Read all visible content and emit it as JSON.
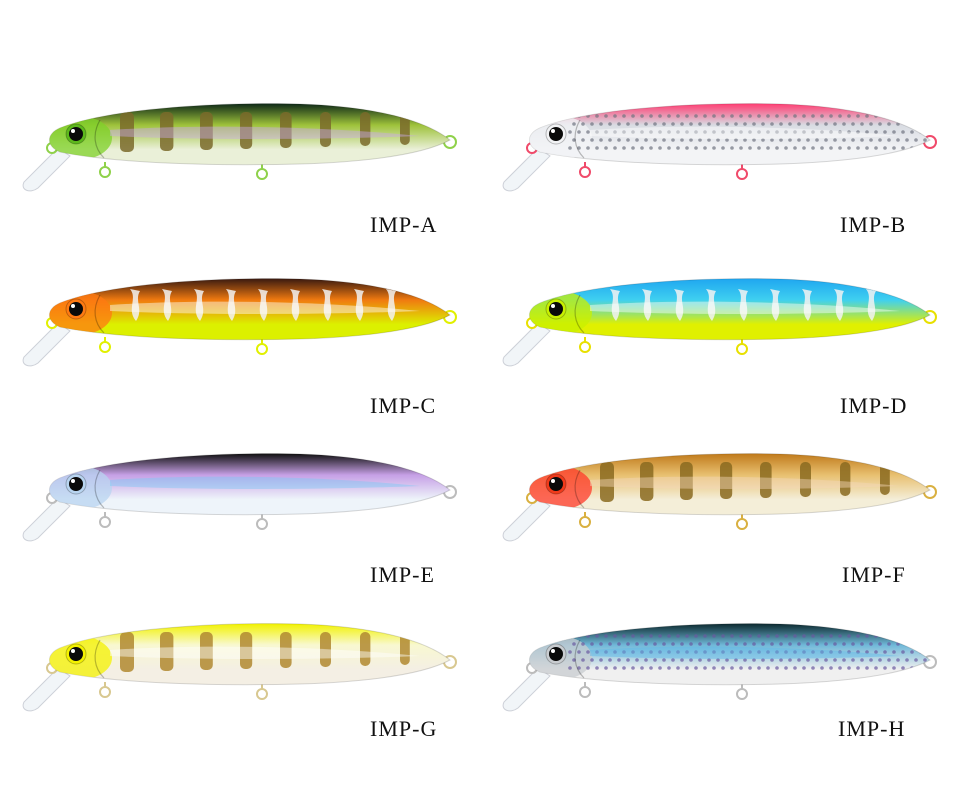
{
  "lures": [
    {
      "code": "IMP-A",
      "back": "#0f2a18",
      "mid": "#9ec23a",
      "belly": "#eaf0d8",
      "head": "#7fd12a",
      "eye_ring": "#5db81c",
      "pattern": "bars",
      "pattern_color": "#7a6a2a",
      "sheen": "#c9a8e8",
      "hook": "#8fd14a"
    },
    {
      "code": "IMP-B",
      "back": "#ff3e73",
      "mid": "#d8dbe2",
      "belly": "#f3f4f6",
      "head": "#f2f3f5",
      "eye_ring": "#f2f3f5",
      "pattern": "scales",
      "pattern_color": "#6f7480",
      "sheen": "#ffffff",
      "hook": "#f04a6a"
    },
    {
      "code": "IMP-C",
      "back": "#3a1a10",
      "mid": "#f07a10",
      "belly": "#dcf000",
      "head": "#ff7a12",
      "eye_ring": "#ff7a12",
      "pattern": "flames",
      "pattern_color": "#f2f2f2",
      "sheen": "#ffffff",
      "hook": "#e1f000"
    },
    {
      "code": "IMP-D",
      "back": "#1fa6f0",
      "mid": "#3fd0f0",
      "belly": "#e0f000",
      "head": "#c8f000",
      "eye_ring": "#c8f000",
      "pattern": "flames",
      "pattern_color": "#f2f2f2",
      "sheen": "#ffffff",
      "hook": "#e8e000"
    },
    {
      "code": "IMP-E",
      "back": "#111111",
      "mid": "#c6a0e6",
      "belly": "#eef4fa",
      "head": "#b8d4f0",
      "eye_ring": "#b8d4f0",
      "pattern": "none",
      "pattern_color": "#88c8f0",
      "sheen": "#7cc8f4",
      "hook": "#bcbcbc"
    },
    {
      "code": "IMP-F",
      "back": "#c07a1a",
      "mid": "#e8c070",
      "belly": "#f4eed8",
      "head": "#ff3a2a",
      "eye_ring": "#f03a1a",
      "pattern": "bars",
      "pattern_color": "#8a6a20",
      "sheen": "#f4d8b8",
      "hook": "#d9b040"
    },
    {
      "code": "IMP-G",
      "back": "#f2f200",
      "mid": "#f8f8d0",
      "belly": "#f4efe4",
      "head": "#f4f200",
      "eye_ring": "#f4f200",
      "pattern": "bars",
      "pattern_color": "#b08830",
      "sheen": "#ffffff",
      "hook": "#d8c890"
    },
    {
      "code": "IMP-H",
      "back": "#0c2a30",
      "mid": "#6fb8d8",
      "belly": "#f0f0f0",
      "head": "#c8ccd0",
      "eye_ring": "#c8ccd0",
      "pattern": "scales",
      "pattern_color": "#6a5aa0",
      "sheen": "#5ab8e8",
      "hook": "#bcbcbc"
    }
  ]
}
